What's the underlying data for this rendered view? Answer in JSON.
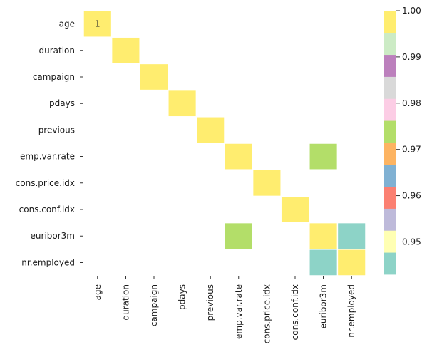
{
  "chart_data": {
    "type": "heatmap",
    "title": "",
    "xlabel": "",
    "ylabel": "",
    "rows": [
      "age",
      "duration",
      "campaign",
      "pdays",
      "previous",
      "emp.var.rate",
      "cons.price.idx",
      "cons.conf.idx",
      "euribor3m",
      "nr.employed"
    ],
    "columns": [
      "age",
      "duration",
      "campaign",
      "pdays",
      "previous",
      "emp.var.rate",
      "cons.price.idx",
      "cons.conf.idx",
      "euribor3m",
      "nr.employed"
    ],
    "cells": [
      {
        "row": "age",
        "col": "age",
        "value": 1.0,
        "label": "1"
      },
      {
        "row": "duration",
        "col": "duration",
        "value": 1.0
      },
      {
        "row": "campaign",
        "col": "campaign",
        "value": 1.0
      },
      {
        "row": "pdays",
        "col": "pdays",
        "value": 1.0
      },
      {
        "row": "previous",
        "col": "previous",
        "value": 1.0
      },
      {
        "row": "emp.var.rate",
        "col": "emp.var.rate",
        "value": 1.0
      },
      {
        "row": "emp.var.rate",
        "col": "euribor3m",
        "value": 0.972
      },
      {
        "row": "cons.price.idx",
        "col": "cons.price.idx",
        "value": 1.0
      },
      {
        "row": "cons.conf.idx",
        "col": "cons.conf.idx",
        "value": 1.0
      },
      {
        "row": "euribor3m",
        "col": "emp.var.rate",
        "value": 0.972
      },
      {
        "row": "euribor3m",
        "col": "euribor3m",
        "value": 1.0
      },
      {
        "row": "euribor3m",
        "col": "nr.employed",
        "value": 0.945
      },
      {
        "row": "nr.employed",
        "col": "euribor3m",
        "value": 0.945
      },
      {
        "row": "nr.employed",
        "col": "nr.employed",
        "value": 1.0
      }
    ],
    "colorbar": {
      "range": [
        0.943,
        1.0
      ],
      "tick_labels": [
        "1.00",
        "0.99",
        "0.98",
        "0.97",
        "0.96",
        "0.95"
      ],
      "tick_values": [
        1.0,
        0.99,
        0.98,
        0.97,
        0.96,
        0.95
      ],
      "palette": [
        "#8dd3c7",
        "#ffffb3",
        "#bebada",
        "#fb8072",
        "#80b1d3",
        "#fdb462",
        "#b3de69",
        "#fccde5",
        "#d9d9d9",
        "#bc80bd",
        "#ccebc5",
        "#ffed6f"
      ]
    },
    "grid": false,
    "legend": "colorbar-right"
  }
}
